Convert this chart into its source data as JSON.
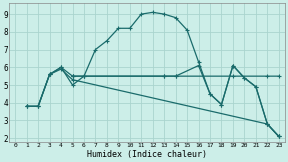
{
  "xlabel": "Humidex (Indice chaleur)",
  "bg_color": "#cceee8",
  "grid_color": "#aad4ce",
  "line_color": "#1a6b6b",
  "xlim": [
    -0.5,
    23.5
  ],
  "ylim": [
    1.8,
    9.6
  ],
  "yticks": [
    2,
    3,
    4,
    5,
    6,
    7,
    8,
    9
  ],
  "xticks": [
    0,
    1,
    2,
    3,
    4,
    5,
    6,
    7,
    8,
    9,
    10,
    11,
    12,
    13,
    14,
    15,
    16,
    17,
    18,
    19,
    20,
    21,
    22,
    23
  ],
  "line1_x": [
    1,
    2,
    3,
    4,
    5,
    6,
    7,
    8,
    9,
    10,
    11,
    12,
    13,
    14,
    15,
    16,
    17,
    18,
    19,
    20,
    21,
    22,
    23
  ],
  "line1_y": [
    3.8,
    3.8,
    5.6,
    6.0,
    5.0,
    5.5,
    7.0,
    7.5,
    8.2,
    8.2,
    9.0,
    9.1,
    9.0,
    8.8,
    8.1,
    6.3,
    4.5,
    3.9,
    6.1,
    5.4,
    4.9,
    2.8,
    2.1
  ],
  "line2_x": [
    1,
    2,
    3,
    4,
    5,
    5,
    6,
    13,
    14,
    19,
    22,
    23
  ],
  "line2_y": [
    3.8,
    3.8,
    5.6,
    6.0,
    5.5,
    5.5,
    5.5,
    5.5,
    5.5,
    5.5,
    5.5,
    5.5
  ],
  "line3_x": [
    1,
    2,
    3,
    4,
    5,
    22,
    23
  ],
  "line3_y": [
    3.8,
    3.8,
    5.6,
    5.9,
    5.3,
    2.8,
    2.1
  ],
  "line4_x": [
    5,
    6,
    13,
    14,
    16,
    17,
    18,
    19,
    20,
    21,
    22,
    23
  ],
  "line4_y": [
    5.5,
    5.5,
    5.5,
    5.5,
    6.1,
    4.5,
    3.9,
    6.1,
    5.4,
    4.9,
    2.8,
    2.1
  ]
}
